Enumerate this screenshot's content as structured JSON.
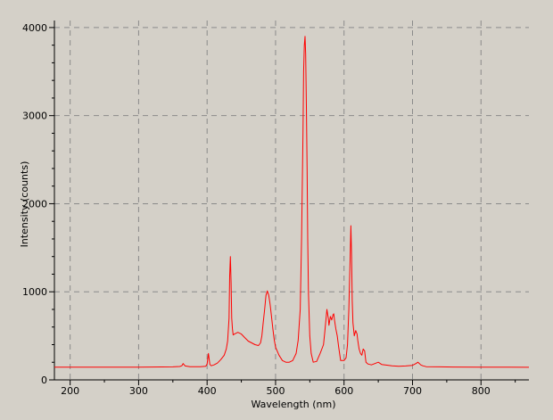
{
  "chart_data": {
    "type": "line",
    "title": "",
    "xlabel": "Wavelength (nm)",
    "ylabel": "Intensity (counts)",
    "xlim": [
      177,
      870
    ],
    "ylim": [
      0,
      4080
    ],
    "x_ticks": [
      200,
      300,
      400,
      500,
      600,
      700,
      800
    ],
    "y_ticks": [
      0,
      1000,
      2000,
      3000,
      4000
    ],
    "x_minor_step": 50,
    "y_minor_step": 200,
    "grid": true,
    "grid_style": "dashed",
    "legend": "none",
    "background_color": "#d4d0c8",
    "series": [
      {
        "color": "#ff0000",
        "x": [
          177,
          200,
          250,
          300,
          350,
          360,
          363,
          365,
          368,
          375,
          390,
          398,
          400,
          402,
          404,
          406,
          410,
          415,
          420,
          425,
          428,
          430,
          432,
          433,
          434,
          435,
          436,
          437,
          438,
          440,
          445,
          450,
          455,
          460,
          465,
          470,
          475,
          478,
          480,
          482,
          484,
          486,
          488,
          490,
          492,
          494,
          496,
          498,
          500,
          505,
          510,
          515,
          520,
          525,
          530,
          533,
          536,
          538,
          540,
          541,
          542,
          543,
          544,
          545,
          546,
          547,
          548,
          550,
          552,
          555,
          560,
          565,
          570,
          572,
          575,
          577,
          578,
          580,
          582,
          584,
          585,
          586,
          588,
          590,
          592,
          595,
          600,
          603,
          605,
          607,
          609,
          610,
          611,
          612,
          613,
          615,
          617,
          619,
          620,
          622,
          624,
          626,
          628,
          630,
          632,
          635,
          640,
          645,
          650,
          655,
          660,
          670,
          680,
          690,
          700,
          705,
          708,
          710,
          712,
          715,
          720,
          740,
          760,
          800,
          840,
          870
        ],
        "y": [
          145,
          145,
          145,
          145,
          148,
          152,
          160,
          185,
          158,
          150,
          150,
          155,
          180,
          300,
          175,
          160,
          170,
          190,
          230,
          280,
          350,
          440,
          700,
          1180,
          1400,
          1100,
          700,
          580,
          510,
          520,
          540,
          520,
          480,
          440,
          420,
          400,
          390,
          420,
          500,
          650,
          800,
          960,
          1010,
          960,
          860,
          720,
          580,
          460,
          370,
          280,
          220,
          200,
          200,
          220,
          300,
          450,
          800,
          1600,
          2800,
          3500,
          3800,
          3900,
          3700,
          3100,
          2400,
          1600,
          1000,
          500,
          300,
          200,
          210,
          300,
          400,
          550,
          800,
          700,
          620,
          720,
          680,
          740,
          750,
          680,
          580,
          500,
          380,
          220,
          220,
          250,
          400,
          800,
          1400,
          1750,
          1400,
          900,
          650,
          500,
          560,
          520,
          450,
          350,
          300,
          280,
          350,
          330,
          200,
          180,
          170,
          185,
          200,
          175,
          170,
          160,
          155,
          158,
          165,
          185,
          200,
          185,
          170,
          160,
          150,
          148,
          146,
          145,
          144,
          143
        ]
      }
    ]
  }
}
